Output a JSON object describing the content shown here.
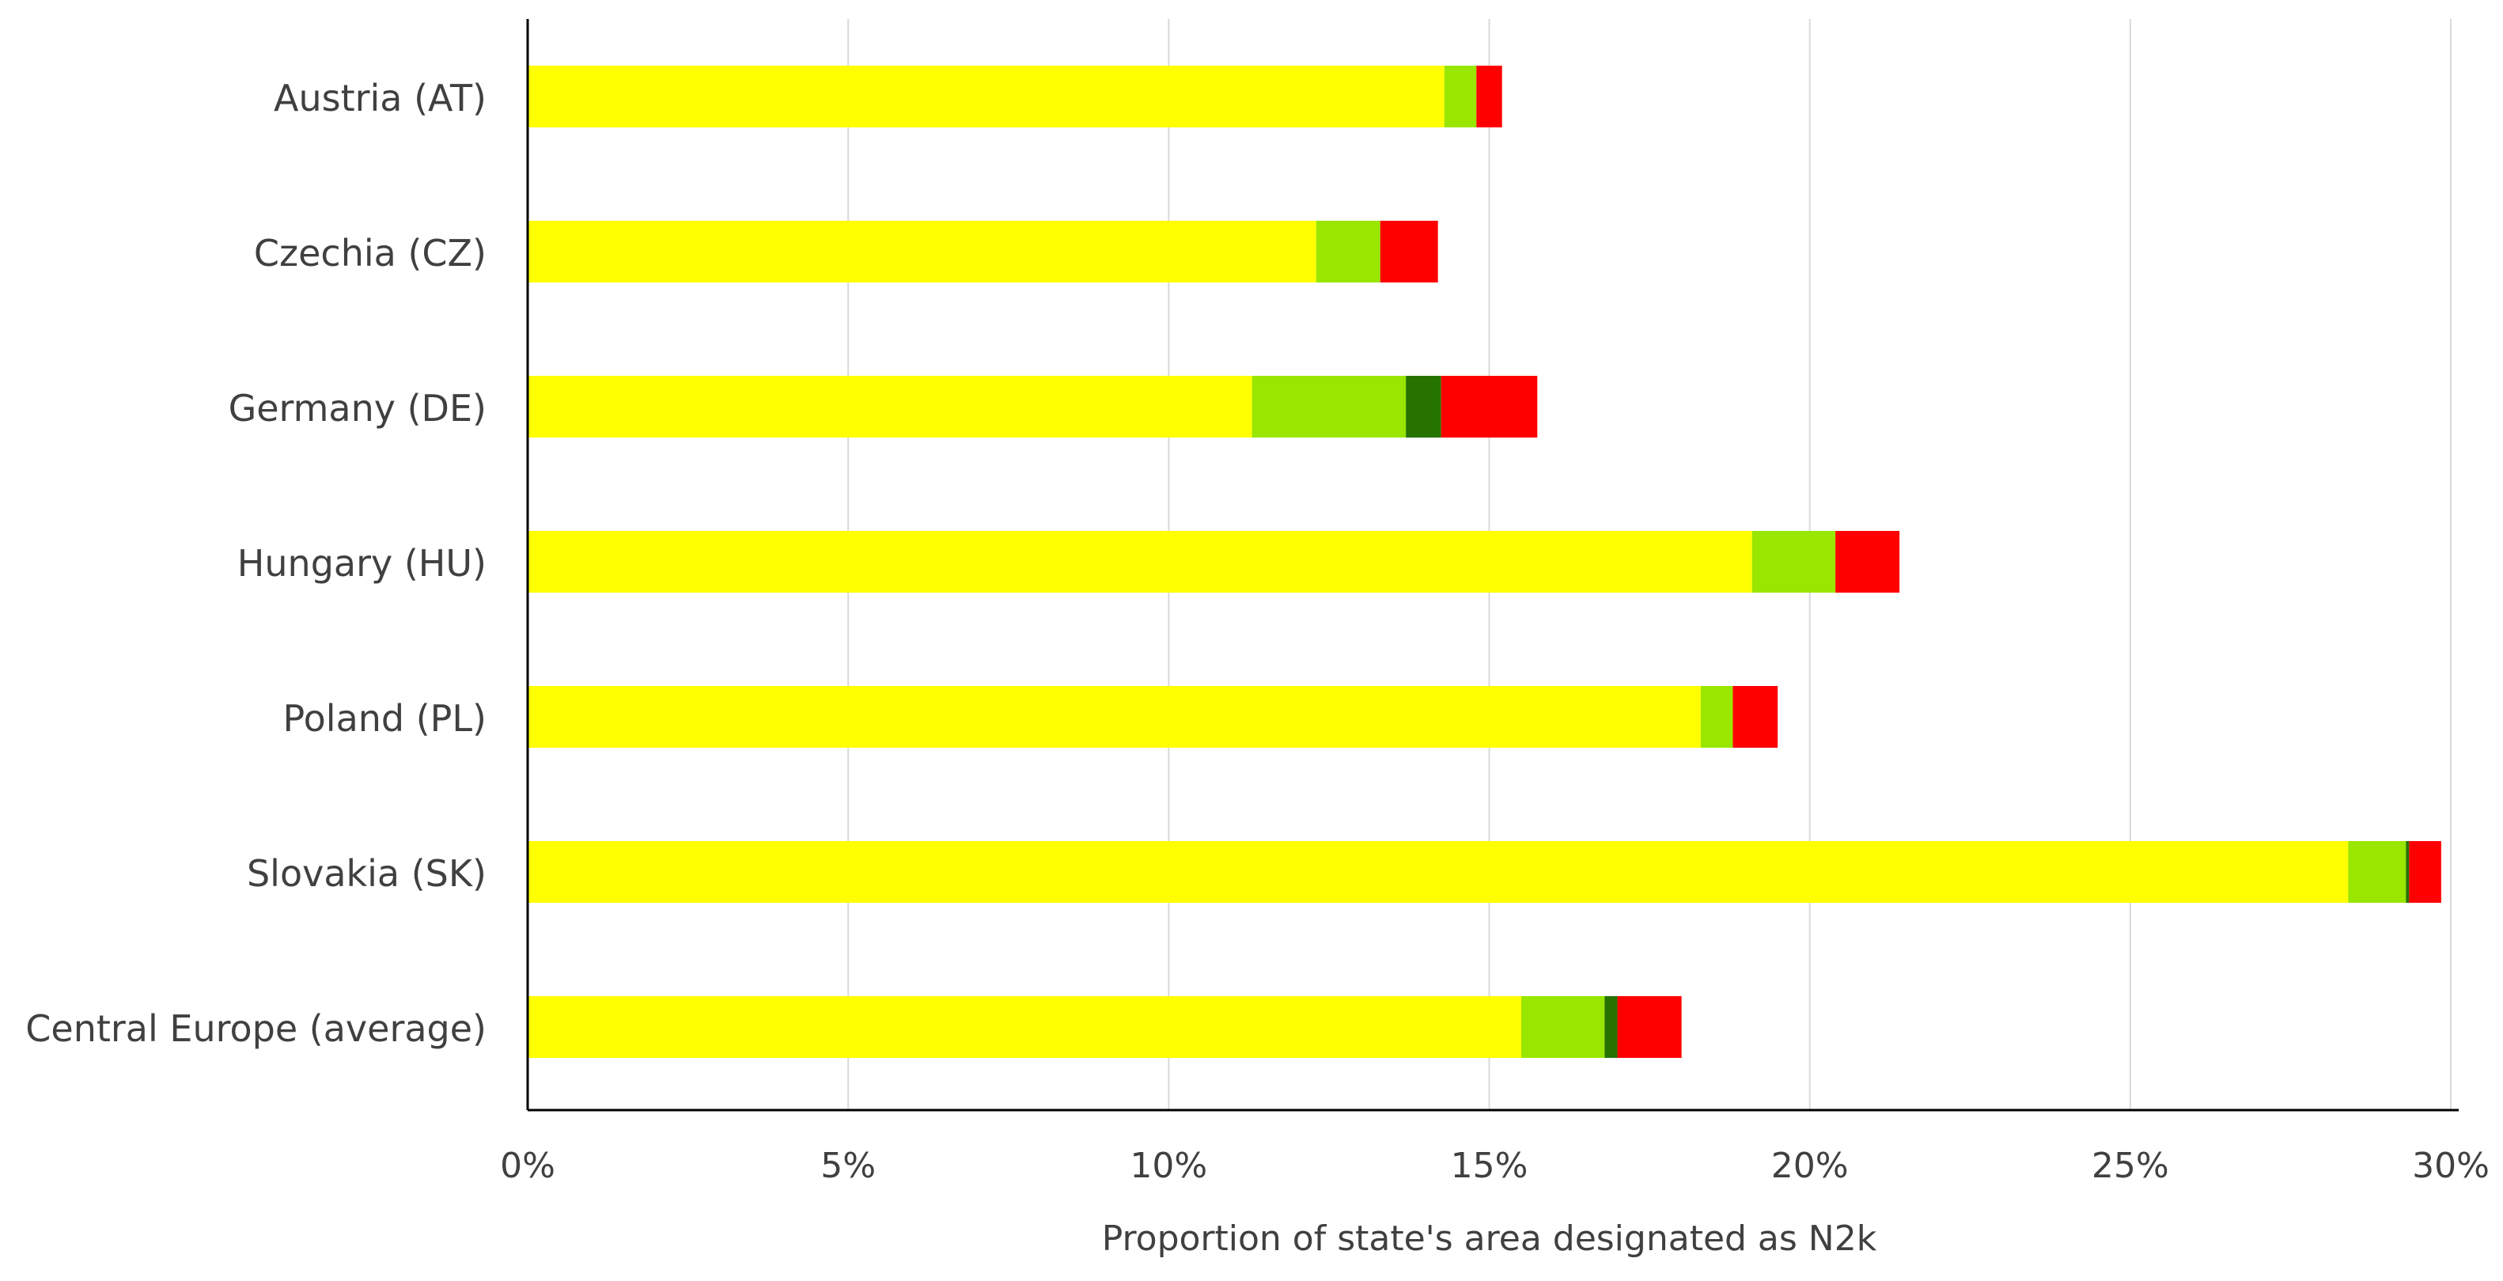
{
  "chart_data": {
    "type": "bar",
    "orientation": "horizontal",
    "stacked": true,
    "title": "",
    "xlabel": "Proportion  of state's area designated as N2k",
    "ylabel": "",
    "xlim": [
      0,
      0.3
    ],
    "x_ticks": [
      0,
      0.05,
      0.1,
      0.15,
      0.2,
      0.25,
      0.3
    ],
    "x_tick_labels": [
      "0%",
      "5%",
      "10%",
      "15%",
      "20%",
      "25%",
      "30%"
    ],
    "grid": "vertical",
    "legend": "none",
    "categories": [
      "Austria (AT)",
      "Czechia (CZ)",
      "Germany (DE)",
      "Hungary (HU)",
      "Poland (PL)",
      "Slovakia (SK)",
      "Central Europe (average)"
    ],
    "series": [
      {
        "name": "yellow segment",
        "color": "#FFFF00",
        "values": [
          0.143,
          0.123,
          0.113,
          0.191,
          0.183,
          0.284,
          0.155
        ]
      },
      {
        "name": "light green segment",
        "color": "#99E600",
        "values": [
          0.005,
          0.01,
          0.024,
          0.013,
          0.005,
          0.009,
          0.013
        ]
      },
      {
        "name": "dark green segment",
        "color": "#267300",
        "values": [
          0.0,
          0.0,
          0.0055,
          0.0,
          0.0,
          0.0005,
          0.002
        ]
      },
      {
        "name": "red segment",
        "color": "#FF0000",
        "values": [
          0.004,
          0.009,
          0.015,
          0.01,
          0.007,
          0.005,
          0.01
        ]
      }
    ]
  }
}
